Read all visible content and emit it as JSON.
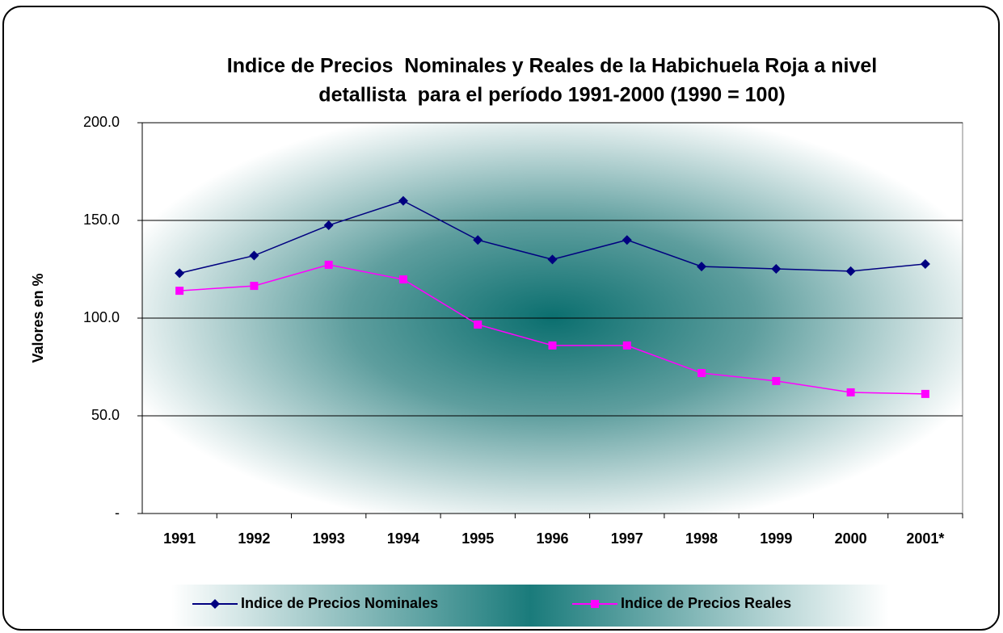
{
  "chart_data": {
    "type": "line",
    "title": [
      "Indice de Precios  Nominales y Reales de la Habichuela Roja a nivel",
      "detallista  para el período 1991-2000 (1990 = 100)"
    ],
    "y_label": "Valores en %",
    "categories": [
      "1991",
      "1992",
      "1993",
      "1994",
      "1995",
      "1996",
      "1997",
      "1998",
      "1999",
      "2000",
      "2001*"
    ],
    "series": [
      {
        "name": "Indice de Precios Nominales",
        "color": "#000080",
        "marker": "diamond",
        "values": [
          123,
          132,
          147.5,
          160,
          140,
          130,
          140,
          126.4,
          125.2,
          124,
          127.7
        ]
      },
      {
        "name": "Indice de Precios Reales",
        "color": "#ff00ff",
        "marker": "square",
        "values": [
          114,
          116.5,
          127.3,
          119.8,
          96.7,
          86,
          86,
          71.9,
          67.8,
          62,
          61.2
        ]
      }
    ],
    "ylim": [
      0,
      200
    ],
    "yticks": [
      {
        "value": 0,
        "label": "-"
      },
      {
        "value": 50,
        "label": "50.0"
      },
      {
        "value": 100,
        "label": "100.0"
      },
      {
        "value": 150,
        "label": "150.0"
      },
      {
        "value": 200,
        "label": "200.0"
      }
    ],
    "grid": true,
    "legend": "bottom"
  }
}
